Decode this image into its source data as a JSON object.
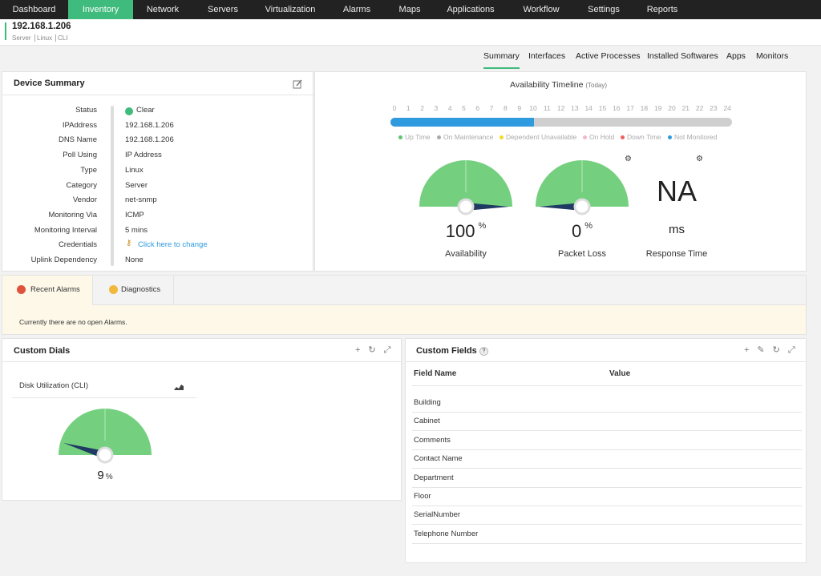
{
  "nav": {
    "items": [
      "Dashboard",
      "Inventory",
      "Network",
      "Servers",
      "Virtualization",
      "Alarms",
      "Maps",
      "Applications",
      "Workflow",
      "Settings",
      "Reports"
    ]
  },
  "header": {
    "title": "192.168.1.206",
    "tags": [
      "Server",
      "Linux",
      "CLI"
    ]
  },
  "tabs": [
    "Summary",
    "Interfaces",
    "Active Processes",
    "Installed Softwares",
    "Apps",
    "Monitors"
  ],
  "device_summary": {
    "title": "Device Summary",
    "rows": [
      [
        "Status",
        "Clear"
      ],
      [
        "IPAddress",
        "192.168.1.206"
      ],
      [
        "DNS Name",
        "192.168.1.206"
      ],
      [
        "Poll Using",
        "IP Address"
      ],
      [
        "Type",
        "Linux"
      ],
      [
        "Category",
        "Server"
      ],
      [
        "Vendor",
        "net-snmp"
      ],
      [
        "Monitoring Via",
        "ICMP"
      ],
      [
        "Monitoring Interval",
        "5 mins"
      ],
      [
        "Credentials",
        "Click here to change"
      ],
      [
        "Uplink Dependency",
        "None"
      ]
    ]
  },
  "availability": {
    "title": "Availability Timeline",
    "subtitle": "(Today)",
    "hours": [
      0,
      1,
      2,
      3,
      4,
      5,
      6,
      7,
      8,
      9,
      10,
      11,
      12,
      13,
      14,
      15,
      16,
      17,
      18,
      19,
      20,
      21,
      22,
      23,
      24
    ],
    "legend": [
      {
        "name": "Up Time",
        "color": "#5cc56f"
      },
      {
        "name": "On Maintenance",
        "color": "#aaaaaa"
      },
      {
        "name": "Dependent Unavailable",
        "color": "#f2dc2a"
      },
      {
        "name": "On Hold",
        "color": "#f7b6c8"
      },
      {
        "name": "Down Time",
        "color": "#ef605d"
      },
      {
        "name": "Not Monitored",
        "color": "#2f9ade"
      }
    ],
    "gauge_scale": [
      0,
      100
    ],
    "gauges": [
      {
        "value": 100,
        "unit": "%",
        "label": "Availability"
      },
      {
        "value": 0,
        "unit": "%",
        "label": "Packet Loss"
      },
      {
        "value": "NA",
        "unit": "ms",
        "label": "Response Time"
      }
    ]
  },
  "alarms": {
    "tabs": [
      "Recent Alarms",
      "Diagnostics"
    ],
    "message": "Currently there are no open Alarms."
  },
  "custom_dials": {
    "title": "Custom Dials",
    "dial": {
      "name": "Disk Utilization (CLI)",
      "value": 9,
      "unit": "%"
    }
  },
  "custom_fields": {
    "title": "Custom Fields",
    "help": "?",
    "columns": [
      "Field Name",
      "Value"
    ],
    "rows": [
      "Building",
      "Cabinet",
      "Comments",
      "Contact Name",
      "Department",
      "Floor",
      "SerialNumber",
      "Telephone Number"
    ]
  }
}
